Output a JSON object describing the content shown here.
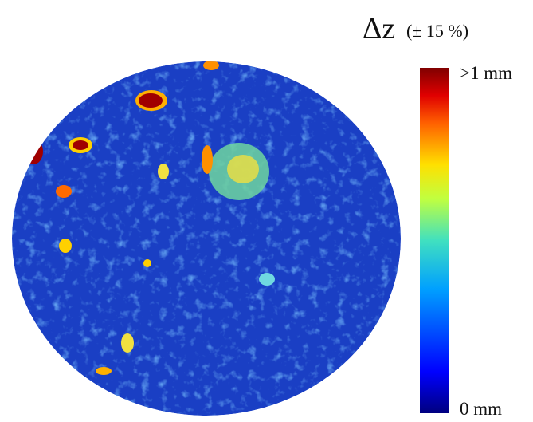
{
  "legend": {
    "symbol": "Δz",
    "tolerance": "(± 15 %)",
    "max_label": ">1 mm",
    "min_label": "0 mm"
  }
}
